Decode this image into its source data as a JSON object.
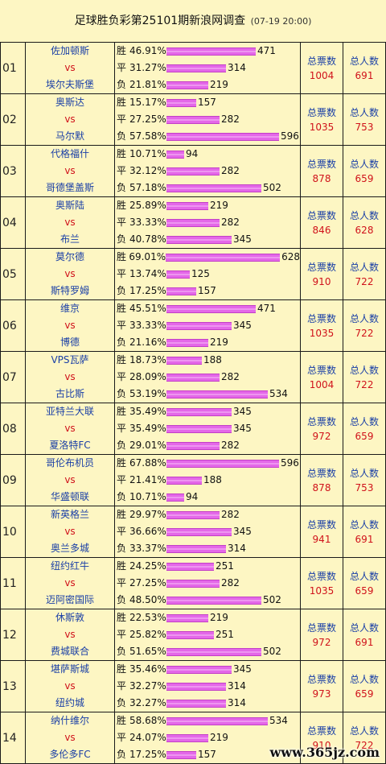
{
  "title": "足球胜负彩第25101期新浪网调查",
  "timestamp": "(07-19 20:00)",
  "labels": {
    "win": "胜",
    "draw": "平",
    "loss": "负",
    "vs": "vs",
    "total_votes": "总票数",
    "total_people": "总人数"
  },
  "bar_scale_max": 628,
  "matches": [
    {
      "no": "01",
      "home": "佐加顿斯",
      "away": "埃尔夫斯堡",
      "win_pct": "46.91%",
      "win": 471,
      "draw_pct": "31.27%",
      "draw": 314,
      "loss_pct": "21.81%",
      "loss": 219,
      "votes": "1004",
      "people": "691"
    },
    {
      "no": "02",
      "home": "奥斯达",
      "away": "马尔默",
      "win_pct": "15.17%",
      "win": 157,
      "draw_pct": "27.25%",
      "draw": 282,
      "loss_pct": "57.58%",
      "loss": 596,
      "votes": "1035",
      "people": "753"
    },
    {
      "no": "03",
      "home": "代格福什",
      "away": "哥德堡盖斯",
      "win_pct": "10.71%",
      "win": 94,
      "draw_pct": "32.12%",
      "draw": 282,
      "loss_pct": "57.18%",
      "loss": 502,
      "votes": "878",
      "people": "659"
    },
    {
      "no": "04",
      "home": "奥斯陆",
      "away": "布兰",
      "win_pct": "25.89%",
      "win": 219,
      "draw_pct": "33.33%",
      "draw": 282,
      "loss_pct": "40.78%",
      "loss": 345,
      "votes": "846",
      "people": "628"
    },
    {
      "no": "05",
      "home": "莫尔德",
      "away": "斯特罗姆",
      "win_pct": "69.01%",
      "win": 628,
      "draw_pct": "13.74%",
      "draw": 125,
      "loss_pct": "17.25%",
      "loss": 157,
      "votes": "910",
      "people": "722"
    },
    {
      "no": "06",
      "home": "维京",
      "away": "博德",
      "win_pct": "45.51%",
      "win": 471,
      "draw_pct": "33.33%",
      "draw": 345,
      "loss_pct": "21.16%",
      "loss": 219,
      "votes": "1035",
      "people": "722"
    },
    {
      "no": "07",
      "home": "VPS瓦萨",
      "away": "古比斯",
      "win_pct": "18.73%",
      "win": 188,
      "draw_pct": "28.09%",
      "draw": 282,
      "loss_pct": "53.19%",
      "loss": 534,
      "votes": "1004",
      "people": "722"
    },
    {
      "no": "08",
      "home": "亚特兰大联",
      "away": "夏洛特FC",
      "win_pct": "35.49%",
      "win": 345,
      "draw_pct": "35.49%",
      "draw": 345,
      "loss_pct": "29.01%",
      "loss": 282,
      "votes": "972",
      "people": "659"
    },
    {
      "no": "09",
      "home": "哥伦布机员",
      "away": "华盛顿联",
      "win_pct": "67.88%",
      "win": 596,
      "draw_pct": "21.41%",
      "draw": 188,
      "loss_pct": "10.71%",
      "loss": 94,
      "votes": "878",
      "people": "753"
    },
    {
      "no": "10",
      "home": "新英格兰",
      "away": "奥兰多城",
      "win_pct": "29.97%",
      "win": 282,
      "draw_pct": "36.66%",
      "draw": 345,
      "loss_pct": "33.37%",
      "loss": 314,
      "votes": "941",
      "people": "691"
    },
    {
      "no": "11",
      "home": "纽约红牛",
      "away": "迈阿密国际",
      "win_pct": "24.25%",
      "win": 251,
      "draw_pct": "27.25%",
      "draw": 282,
      "loss_pct": "48.50%",
      "loss": 502,
      "votes": "1035",
      "people": "659"
    },
    {
      "no": "12",
      "home": "休斯敦",
      "away": "费城联合",
      "win_pct": "22.53%",
      "win": 219,
      "draw_pct": "25.82%",
      "draw": 251,
      "loss_pct": "51.65%",
      "loss": 502,
      "votes": "972",
      "people": "691"
    },
    {
      "no": "13",
      "home": "堪萨斯城",
      "away": "纽约城",
      "win_pct": "35.46%",
      "win": 345,
      "draw_pct": "32.27%",
      "draw": 314,
      "loss_pct": "32.27%",
      "loss": 314,
      "votes": "973",
      "people": "659"
    },
    {
      "no": "14",
      "home": "纳什维尔",
      "away": "多伦多FC",
      "win_pct": "58.68%",
      "win": 534,
      "draw_pct": "24.07%",
      "draw": 219,
      "loss_pct": "17.25%",
      "loss": 157,
      "votes": "910",
      "people": "722"
    }
  ],
  "watermark": "www.365jz.com"
}
